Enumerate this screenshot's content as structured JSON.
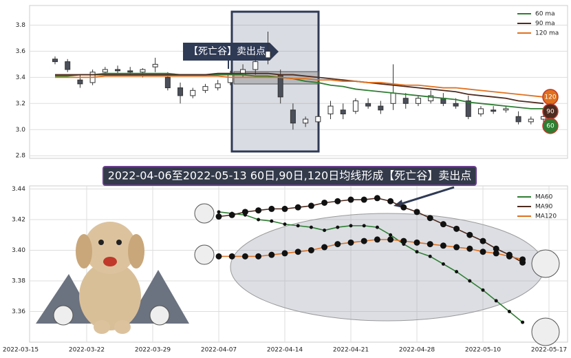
{
  "banner": "2022-04-06至2022-05-13 60日,90日,120日均线形成【死亡谷】卖出点",
  "chart_data": [
    {
      "type": "candlestick",
      "annotation": "【死亡谷】卖出点",
      "open": [
        3.54,
        3.52,
        3.38,
        3.36,
        3.44,
        3.46,
        3.45,
        3.44,
        3.48,
        3.4,
        3.32,
        3.26,
        3.3,
        3.32,
        3.36,
        3.42,
        3.46,
        3.55,
        3.42,
        3.15,
        3.05,
        3.06,
        3.12,
        3.15,
        3.14,
        3.2,
        3.18,
        3.2,
        3.24,
        3.2,
        3.22,
        3.24,
        3.2,
        3.22,
        3.12,
        3.15,
        3.15,
        3.1,
        3.06,
        3.08
      ],
      "high": [
        3.56,
        3.54,
        3.42,
        3.46,
        3.48,
        3.49,
        3.48,
        3.47,
        3.55,
        3.44,
        3.36,
        3.32,
        3.35,
        3.38,
        3.45,
        3.5,
        3.58,
        3.75,
        3.46,
        3.2,
        3.1,
        3.12,
        3.22,
        3.2,
        3.24,
        3.24,
        3.22,
        3.5,
        3.28,
        3.26,
        3.3,
        3.28,
        3.24,
        3.26,
        3.18,
        3.18,
        3.18,
        3.14,
        3.1,
        3.12
      ],
      "low": [
        3.5,
        3.44,
        3.32,
        3.34,
        3.42,
        3.43,
        3.42,
        3.4,
        3.44,
        3.3,
        3.2,
        3.24,
        3.28,
        3.3,
        3.34,
        3.4,
        3.42,
        3.5,
        3.2,
        3.0,
        3.02,
        3.03,
        3.08,
        3.08,
        3.12,
        3.16,
        3.12,
        3.15,
        3.16,
        3.18,
        3.2,
        3.18,
        3.16,
        3.08,
        3.1,
        3.12,
        3.13,
        3.04,
        3.04,
        3.06
      ],
      "close": [
        3.52,
        3.46,
        3.35,
        3.44,
        3.46,
        3.45,
        3.44,
        3.46,
        3.5,
        3.32,
        3.26,
        3.3,
        3.33,
        3.35,
        3.42,
        3.46,
        3.52,
        3.6,
        3.25,
        3.05,
        3.08,
        3.1,
        3.18,
        3.12,
        3.22,
        3.18,
        3.15,
        3.28,
        3.2,
        3.24,
        3.26,
        3.2,
        3.18,
        3.1,
        3.16,
        3.14,
        3.16,
        3.06,
        3.08,
        3.1
      ],
      "series": [
        {
          "name": "60 ma",
          "end_label": "60",
          "color": "#2e7d32",
          "values": [
            3.41,
            3.41,
            3.42,
            3.42,
            3.43,
            3.43,
            3.43,
            3.43,
            3.43,
            3.43,
            3.42,
            3.42,
            3.42,
            3.42,
            3.42,
            3.42,
            3.41,
            3.41,
            3.4,
            3.39,
            3.37,
            3.36,
            3.34,
            3.33,
            3.31,
            3.3,
            3.29,
            3.28,
            3.27,
            3.26,
            3.25,
            3.24,
            3.23,
            3.21,
            3.2,
            3.19,
            3.18,
            3.17,
            3.16,
            3.16
          ]
        },
        {
          "name": "90 ma",
          "end_label": "90",
          "color": "#4e2a1e",
          "values": [
            3.42,
            3.42,
            3.42,
            3.42,
            3.42,
            3.42,
            3.42,
            3.42,
            3.42,
            3.42,
            3.42,
            3.42,
            3.42,
            3.43,
            3.43,
            3.43,
            3.43,
            3.43,
            3.42,
            3.42,
            3.41,
            3.4,
            3.39,
            3.38,
            3.37,
            3.36,
            3.35,
            3.34,
            3.33,
            3.32,
            3.31,
            3.3,
            3.29,
            3.27,
            3.26,
            3.25,
            3.24,
            3.22,
            3.21,
            3.2
          ]
        },
        {
          "name": "120 ma",
          "end_label": "120",
          "color": "#e0701e",
          "values": [
            3.4,
            3.4,
            3.4,
            3.4,
            3.41,
            3.41,
            3.41,
            3.41,
            3.41,
            3.41,
            3.41,
            3.41,
            3.41,
            3.41,
            3.4,
            3.4,
            3.4,
            3.4,
            3.4,
            3.39,
            3.39,
            3.38,
            3.38,
            3.37,
            3.37,
            3.36,
            3.36,
            3.35,
            3.34,
            3.34,
            3.33,
            3.32,
            3.32,
            3.31,
            3.3,
            3.29,
            3.28,
            3.27,
            3.26,
            3.25
          ]
        }
      ],
      "ylim": [
        2.78,
        3.95
      ],
      "yticks": [
        2.8,
        {
          "value": 3,
          "label": "3.0"
        },
        3.2,
        3.4,
        3.6,
        3.8
      ],
      "grid": true,
      "legend": "upper right"
    },
    {
      "type": "line",
      "categories": [
        "2022-03-15",
        null,
        null,
        null,
        null,
        "2022-03-22",
        null,
        null,
        null,
        null,
        "2022-03-29",
        null,
        null,
        null,
        null,
        "2022-04-07",
        null,
        null,
        null,
        null,
        "2022-04-14",
        null,
        null,
        null,
        null,
        "2022-04-21",
        null,
        null,
        null,
        null,
        "2022-04-28",
        null,
        null,
        null,
        null,
        "2022-05-10",
        null,
        null,
        null,
        null,
        "2022-05-17"
      ],
      "series": [
        {
          "name": "MA60",
          "color": "#2e7d32",
          "values": [
            null,
            null,
            null,
            null,
            null,
            null,
            null,
            null,
            null,
            null,
            null,
            null,
            null,
            null,
            null,
            3.425,
            3.424,
            3.423,
            3.42,
            3.419,
            3.417,
            3.416,
            3.415,
            3.413,
            3.415,
            3.416,
            3.416,
            3.415,
            3.41,
            3.404,
            3.399,
            3.396,
            3.391,
            3.386,
            3.38,
            3.374,
            3.367,
            3.36,
            3.353,
            null,
            null
          ]
        },
        {
          "name": "MA90",
          "color": "#4e2a1e",
          "values": [
            null,
            null,
            null,
            null,
            null,
            null,
            null,
            null,
            null,
            null,
            null,
            null,
            null,
            null,
            null,
            3.422,
            3.423,
            3.425,
            3.426,
            3.427,
            3.427,
            3.428,
            3.429,
            3.431,
            3.432,
            3.433,
            3.433,
            3.434,
            3.432,
            3.428,
            3.425,
            3.421,
            3.417,
            3.414,
            3.41,
            3.406,
            3.401,
            3.397,
            3.392,
            null,
            null
          ]
        },
        {
          "name": "MA120",
          "color": "#e0701e",
          "values": [
            null,
            null,
            null,
            null,
            null,
            null,
            null,
            null,
            null,
            null,
            null,
            null,
            null,
            null,
            null,
            3.396,
            3.396,
            3.396,
            3.396,
            3.397,
            3.398,
            3.399,
            3.4,
            3.402,
            3.404,
            3.405,
            3.406,
            3.407,
            3.407,
            3.406,
            3.405,
            3.404,
            3.403,
            3.402,
            3.401,
            3.399,
            3.398,
            3.396,
            3.394,
            null,
            null
          ]
        }
      ],
      "ylim": [
        3.34,
        3.442
      ],
      "yticks": [
        3.36,
        3.38,
        {
          "value": 3.4,
          "label": "3.40"
        },
        3.42,
        3.44
      ],
      "grid": true,
      "legend": "upper right"
    }
  ]
}
